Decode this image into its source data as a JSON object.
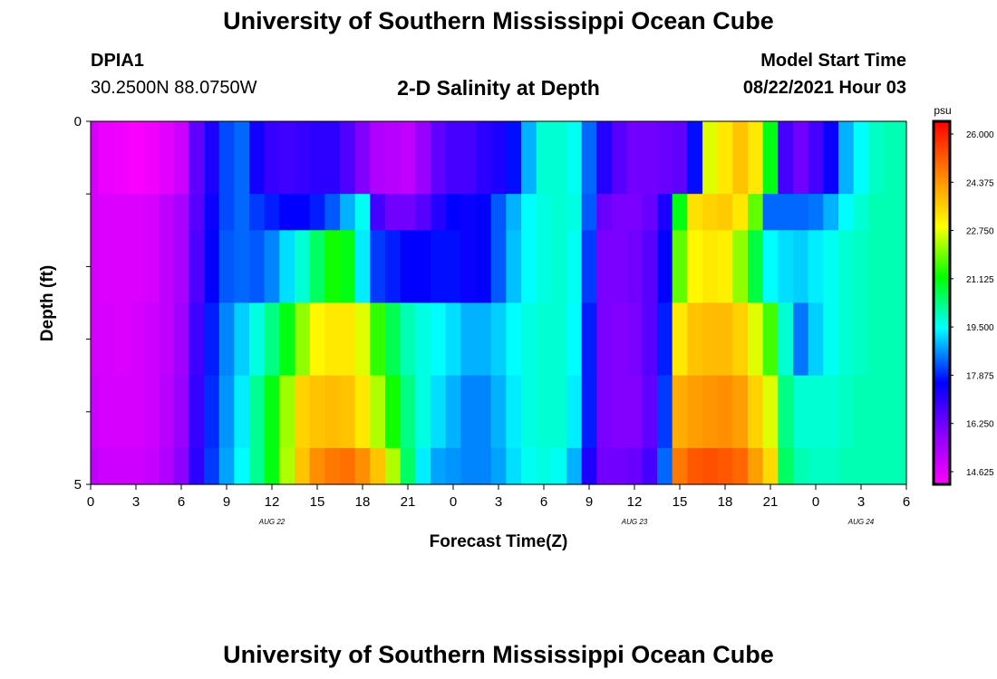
{
  "header": {
    "title": "University of Southern Mississippi Ocean Cube",
    "station": "DPIA1",
    "location": "30.2500N  88.0750W",
    "subtitle": "2-D Salinity at Depth",
    "model_start_label": "Model Start Time",
    "model_start_value": "08/22/2021 Hour 03"
  },
  "footer": {
    "title": "University of Southern Mississippi Ocean Cube"
  },
  "chart_data": {
    "type": "heatmap",
    "title": "2-D Salinity at Depth",
    "xlabel": "Forecast Time(Z)",
    "ylabel": "Depth (ft)",
    "x_tick_labels": [
      "0",
      "3",
      "6",
      "9",
      "12",
      "15",
      "18",
      "21",
      "0",
      "3",
      "6",
      "9",
      "12",
      "15",
      "18",
      "21",
      "0",
      "3",
      "6"
    ],
    "date_labels": [
      {
        "text": "AUG  22",
        "hour": 12
      },
      {
        "text": "AUG  23",
        "hour": 36
      },
      {
        "text": "AUG  24",
        "hour": 51
      }
    ],
    "y_tick_labels": [
      "0",
      "5"
    ],
    "ylim": [
      0,
      5
    ],
    "hours": [
      0,
      54
    ],
    "colorbar": {
      "unit": "psu",
      "min": 14.625,
      "max": 26.0,
      "tick_labels": [
        "26.000",
        "24.375",
        "22.750",
        "21.125",
        "19.500",
        "17.875",
        "16.250",
        "14.625"
      ]
    },
    "depth_layers_ft": [
      0.25,
      1.25,
      2.0,
      3.0,
      4.0,
      4.75
    ],
    "time_hours": [
      0,
      1,
      2,
      3,
      4,
      5,
      6,
      7,
      8,
      9,
      10,
      11,
      12,
      13,
      14,
      15,
      16,
      17,
      18,
      19,
      20,
      21,
      22,
      23,
      24,
      25,
      26,
      27,
      28,
      29,
      30,
      31,
      32,
      33,
      34,
      35,
      36,
      37,
      38,
      39,
      40,
      41,
      42,
      43,
      44,
      45,
      46,
      47,
      48,
      49,
      50,
      51,
      52,
      53,
      54
    ],
    "salinity_psu": [
      [
        15.2,
        14.9,
        14.8,
        14.7,
        14.8,
        15.0,
        15.3,
        16.7,
        17.5,
        18.3,
        18.5,
        17.6,
        17.2,
        17.1,
        17.2,
        17.3,
        17.3,
        16.9,
        16.3,
        15.7,
        15.6,
        15.5,
        16.0,
        16.7,
        17.0,
        17.0,
        17.3,
        17.5,
        17.9,
        19.0,
        19.8,
        19.8,
        19.6,
        18.5,
        17.4,
        16.8,
        16.5,
        16.5,
        16.6,
        16.7,
        17.9,
        22.5,
        23.0,
        23.5,
        23.0,
        21.0,
        17.0,
        16.5,
        17.0,
        17.7,
        19.0,
        19.5,
        19.9,
        20.0,
        20.0
      ],
      [
        15.2,
        15.1,
        15.1,
        15.1,
        15.2,
        15.5,
        15.8,
        16.8,
        17.7,
        18.3,
        18.5,
        18.2,
        18.0,
        17.8,
        17.8,
        18.0,
        18.4,
        19.0,
        19.6,
        17.0,
        16.5,
        16.5,
        16.8,
        17.4,
        17.8,
        17.7,
        17.8,
        18.4,
        19.0,
        19.5,
        19.7,
        19.8,
        19.7,
        18.4,
        16.6,
        16.4,
        16.4,
        16.6,
        17.5,
        21.0,
        23.1,
        23.3,
        23.4,
        23.0,
        21.7,
        18.5,
        18.5,
        18.5,
        18.6,
        19.0,
        19.5,
        19.8,
        20.0,
        20.0,
        20.0
      ],
      [
        15.2,
        15.1,
        15.1,
        15.1,
        15.2,
        15.5,
        15.8,
        16.9,
        17.8,
        18.4,
        18.5,
        18.4,
        18.7,
        19.3,
        19.8,
        20.5,
        21.2,
        21.0,
        19.4,
        18.2,
        18.0,
        17.8,
        17.8,
        17.9,
        17.9,
        17.7,
        17.8,
        18.4,
        19.1,
        19.5,
        19.7,
        19.8,
        19.6,
        18.2,
        16.4,
        16.4,
        16.5,
        16.8,
        17.8,
        21.7,
        22.8,
        23.0,
        22.9,
        22.0,
        20.7,
        19.5,
        19.3,
        19.2,
        19.4,
        19.6,
        19.8,
        19.9,
        20.0,
        20.0,
        20.0
      ],
      [
        15.2,
        15.2,
        15.1,
        15.2,
        15.3,
        15.5,
        15.9,
        17.1,
        18.0,
        18.7,
        19.2,
        19.7,
        20.3,
        21.0,
        22.0,
        22.8,
        23.0,
        23.0,
        22.5,
        21.4,
        20.6,
        20.0,
        19.7,
        19.5,
        19.3,
        19.0,
        19.0,
        19.2,
        19.5,
        19.7,
        19.8,
        19.8,
        19.5,
        18.0,
        16.4,
        16.3,
        16.4,
        16.8,
        18.0,
        23.0,
        23.5,
        23.6,
        23.6,
        23.3,
        22.5,
        21.5,
        19.8,
        18.6,
        19.2,
        19.6,
        19.8,
        19.9,
        20.0,
        20.0,
        20.0
      ],
      [
        15.3,
        15.2,
        15.2,
        15.2,
        15.3,
        15.6,
        16.0,
        17.2,
        18.1,
        18.8,
        19.4,
        20.2,
        21.0,
        22.1,
        23.3,
        23.5,
        23.6,
        23.5,
        23.0,
        22.2,
        21.2,
        20.3,
        19.7,
        19.3,
        19.0,
        18.7,
        18.7,
        19.0,
        19.4,
        19.7,
        19.8,
        19.8,
        19.4,
        18.0,
        16.4,
        16.3,
        16.3,
        16.7,
        18.2,
        23.8,
        24.0,
        24.1,
        24.2,
        24.0,
        23.3,
        22.5,
        20.3,
        19.8,
        19.8,
        19.8,
        19.9,
        20.0,
        20.0,
        20.0,
        20.0
      ],
      [
        15.5,
        15.3,
        15.3,
        15.3,
        15.4,
        15.7,
        16.2,
        17.3,
        18.2,
        18.9,
        19.5,
        20.2,
        21.0,
        22.2,
        23.5,
        24.2,
        24.5,
        24.6,
        24.2,
        23.5,
        22.2,
        20.5,
        19.4,
        18.9,
        18.8,
        18.7,
        18.7,
        18.9,
        19.3,
        19.6,
        19.7,
        19.6,
        19.0,
        17.5,
        16.5,
        16.5,
        16.6,
        17.0,
        18.5,
        24.5,
        24.9,
        25.0,
        24.9,
        24.7,
        24.0,
        23.2,
        20.5,
        20.0,
        19.9,
        19.9,
        20.0,
        20.0,
        20.0,
        20.0,
        20.0
      ]
    ]
  }
}
